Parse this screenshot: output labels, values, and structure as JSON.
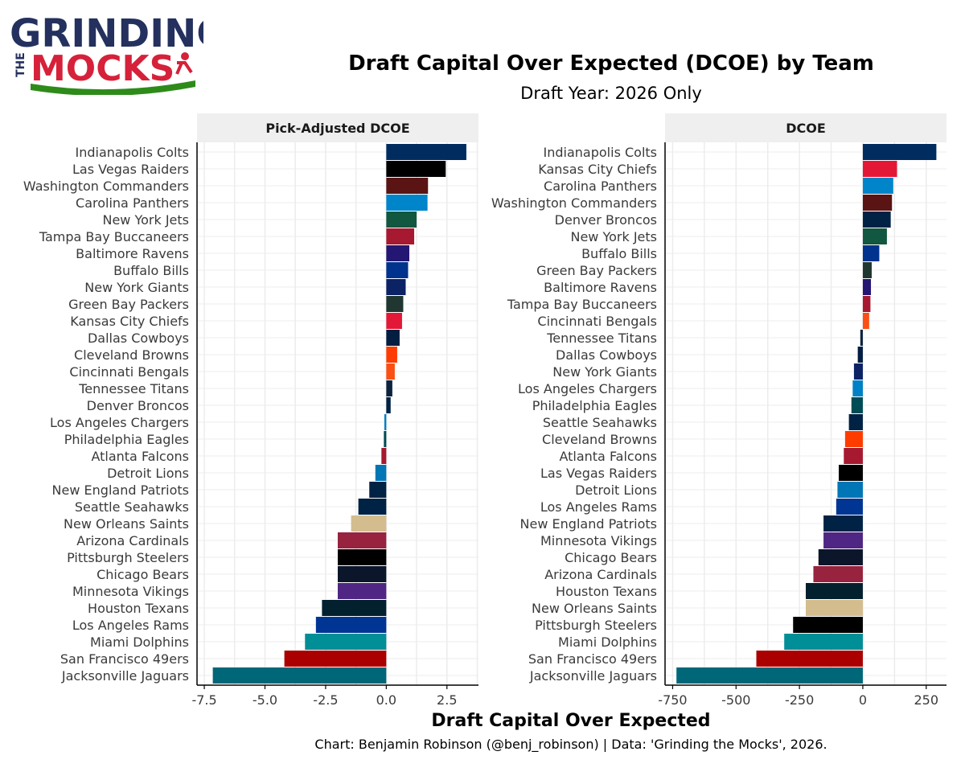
{
  "logo": {
    "word_top": "GRINDING",
    "word_the": "THE",
    "word_bottom": "MOCKS"
  },
  "title": "Draft Capital Over Expected (DCOE) by Team",
  "subtitle": "Draft Year: 2026 Only",
  "x_axis_label": "Draft Capital Over Expected",
  "caption": "Chart: Benjamin Robinson (@benj_robinson) | Data: 'Grinding the Mocks', 2026.",
  "colors": {
    "strip_bg": "#efefef",
    "grid": "#ececec",
    "axis": "#000000",
    "logo_navy": "#24305e",
    "logo_red": "#d6213a",
    "logo_green": "#2e8b1a"
  },
  "chart_data": [
    {
      "type": "bar",
      "orientation": "horizontal",
      "panel_title": "Pick-Adjusted DCOE",
      "xlim": [
        -7.8,
        3.8
      ],
      "xticks": [
        -7.5,
        -5.0,
        -2.5,
        0.0,
        2.5
      ],
      "xtick_labels": [
        "-7.5",
        "-5.0",
        "-2.5",
        "0.0",
        "2.5"
      ],
      "grid": true,
      "categories": [
        "Indianapolis Colts",
        "Las Vegas Raiders",
        "Washington Commanders",
        "Carolina Panthers",
        "New York Jets",
        "Tampa Bay Buccaneers",
        "Baltimore Ravens",
        "Buffalo Bills",
        "New York Giants",
        "Green Bay Packers",
        "Kansas City Chiefs",
        "Dallas Cowboys",
        "Cleveland Browns",
        "Cincinnati Bengals",
        "Tennessee Titans",
        "Denver Broncos",
        "Los Angeles Chargers",
        "Philadelphia Eagles",
        "Atlanta Falcons",
        "Detroit Lions",
        "New England Patriots",
        "Seattle Seahawks",
        "New Orleans Saints",
        "Arizona Cardinals",
        "Pittsburgh Steelers",
        "Chicago Bears",
        "Minnesota Vikings",
        "Houston Texans",
        "Los Angeles Rams",
        "Miami Dolphins",
        "San Francisco 49ers",
        "Jacksonville Jaguars"
      ],
      "values": [
        3.3,
        2.45,
        1.72,
        1.7,
        1.25,
        1.15,
        0.95,
        0.9,
        0.8,
        0.7,
        0.65,
        0.55,
        0.45,
        0.35,
        0.25,
        0.18,
        -0.08,
        -0.1,
        -0.2,
        -0.45,
        -0.7,
        -1.15,
        -1.45,
        -2.0,
        -2.0,
        -2.0,
        -2.0,
        -2.65,
        -2.9,
        -3.35,
        -4.2,
        -7.15
      ],
      "colors": [
        "#002C5F",
        "#000000",
        "#5A1414",
        "#0085CA",
        "#125740",
        "#A71930",
        "#241773",
        "#00338D",
        "#0B2265",
        "#203731",
        "#E31837",
        "#041E42",
        "#FF3C00",
        "#FB4F14",
        "#0C2340",
        "#002244",
        "#0080C6",
        "#004C54",
        "#A71930",
        "#0076B6",
        "#002244",
        "#002244",
        "#D3BC8D",
        "#97233F",
        "#000000",
        "#0B162A",
        "#4F2683",
        "#03202F",
        "#003594",
        "#008E97",
        "#AA0000",
        "#006778"
      ]
    },
    {
      "type": "bar",
      "orientation": "horizontal",
      "panel_title": "DCOE",
      "xlim": [
        -780,
        330
      ],
      "xticks": [
        -750,
        -500,
        -250,
        0,
        250
      ],
      "xtick_labels": [
        "-750",
        "-500",
        "-250",
        "0",
        "250"
      ],
      "grid": true,
      "categories": [
        "Indianapolis Colts",
        "Kansas City Chiefs",
        "Carolina Panthers",
        "Washington Commanders",
        "Denver Broncos",
        "New York Jets",
        "Buffalo Bills",
        "Green Bay Packers",
        "Baltimore Ravens",
        "Tampa Bay Buccaneers",
        "Cincinnati Bengals",
        "Tennessee Titans",
        "Dallas Cowboys",
        "New York Giants",
        "Los Angeles Chargers",
        "Philadelphia Eagles",
        "Seattle Seahawks",
        "Cleveland Browns",
        "Atlanta Falcons",
        "Las Vegas Raiders",
        "Detroit Lions",
        "Los Angeles Rams",
        "New England Patriots",
        "Minnesota Vikings",
        "Chicago Bears",
        "Arizona Cardinals",
        "Houston Texans",
        "New Orleans Saints",
        "Pittsburgh Steelers",
        "Miami Dolphins",
        "San Francisco 49ers",
        "Jacksonville Jaguars"
      ],
      "values": [
        290,
        135,
        120,
        115,
        110,
        95,
        65,
        35,
        32,
        30,
        25,
        -10,
        -20,
        -35,
        -40,
        -45,
        -55,
        -70,
        -75,
        -95,
        -100,
        -105,
        -155,
        -155,
        -175,
        -195,
        -225,
        -225,
        -275,
        -310,
        -420,
        -735
      ],
      "colors": [
        "#002C5F",
        "#E31837",
        "#0085CA",
        "#5A1414",
        "#002244",
        "#125740",
        "#00338D",
        "#203731",
        "#241773",
        "#A71930",
        "#FB4F14",
        "#0C2340",
        "#041E42",
        "#0B2265",
        "#0080C6",
        "#004C54",
        "#002244",
        "#FF3C00",
        "#A71930",
        "#000000",
        "#0076B6",
        "#003594",
        "#002244",
        "#4F2683",
        "#0B162A",
        "#97233F",
        "#03202F",
        "#D3BC8D",
        "#000000",
        "#008E97",
        "#AA0000",
        "#006778"
      ]
    }
  ]
}
